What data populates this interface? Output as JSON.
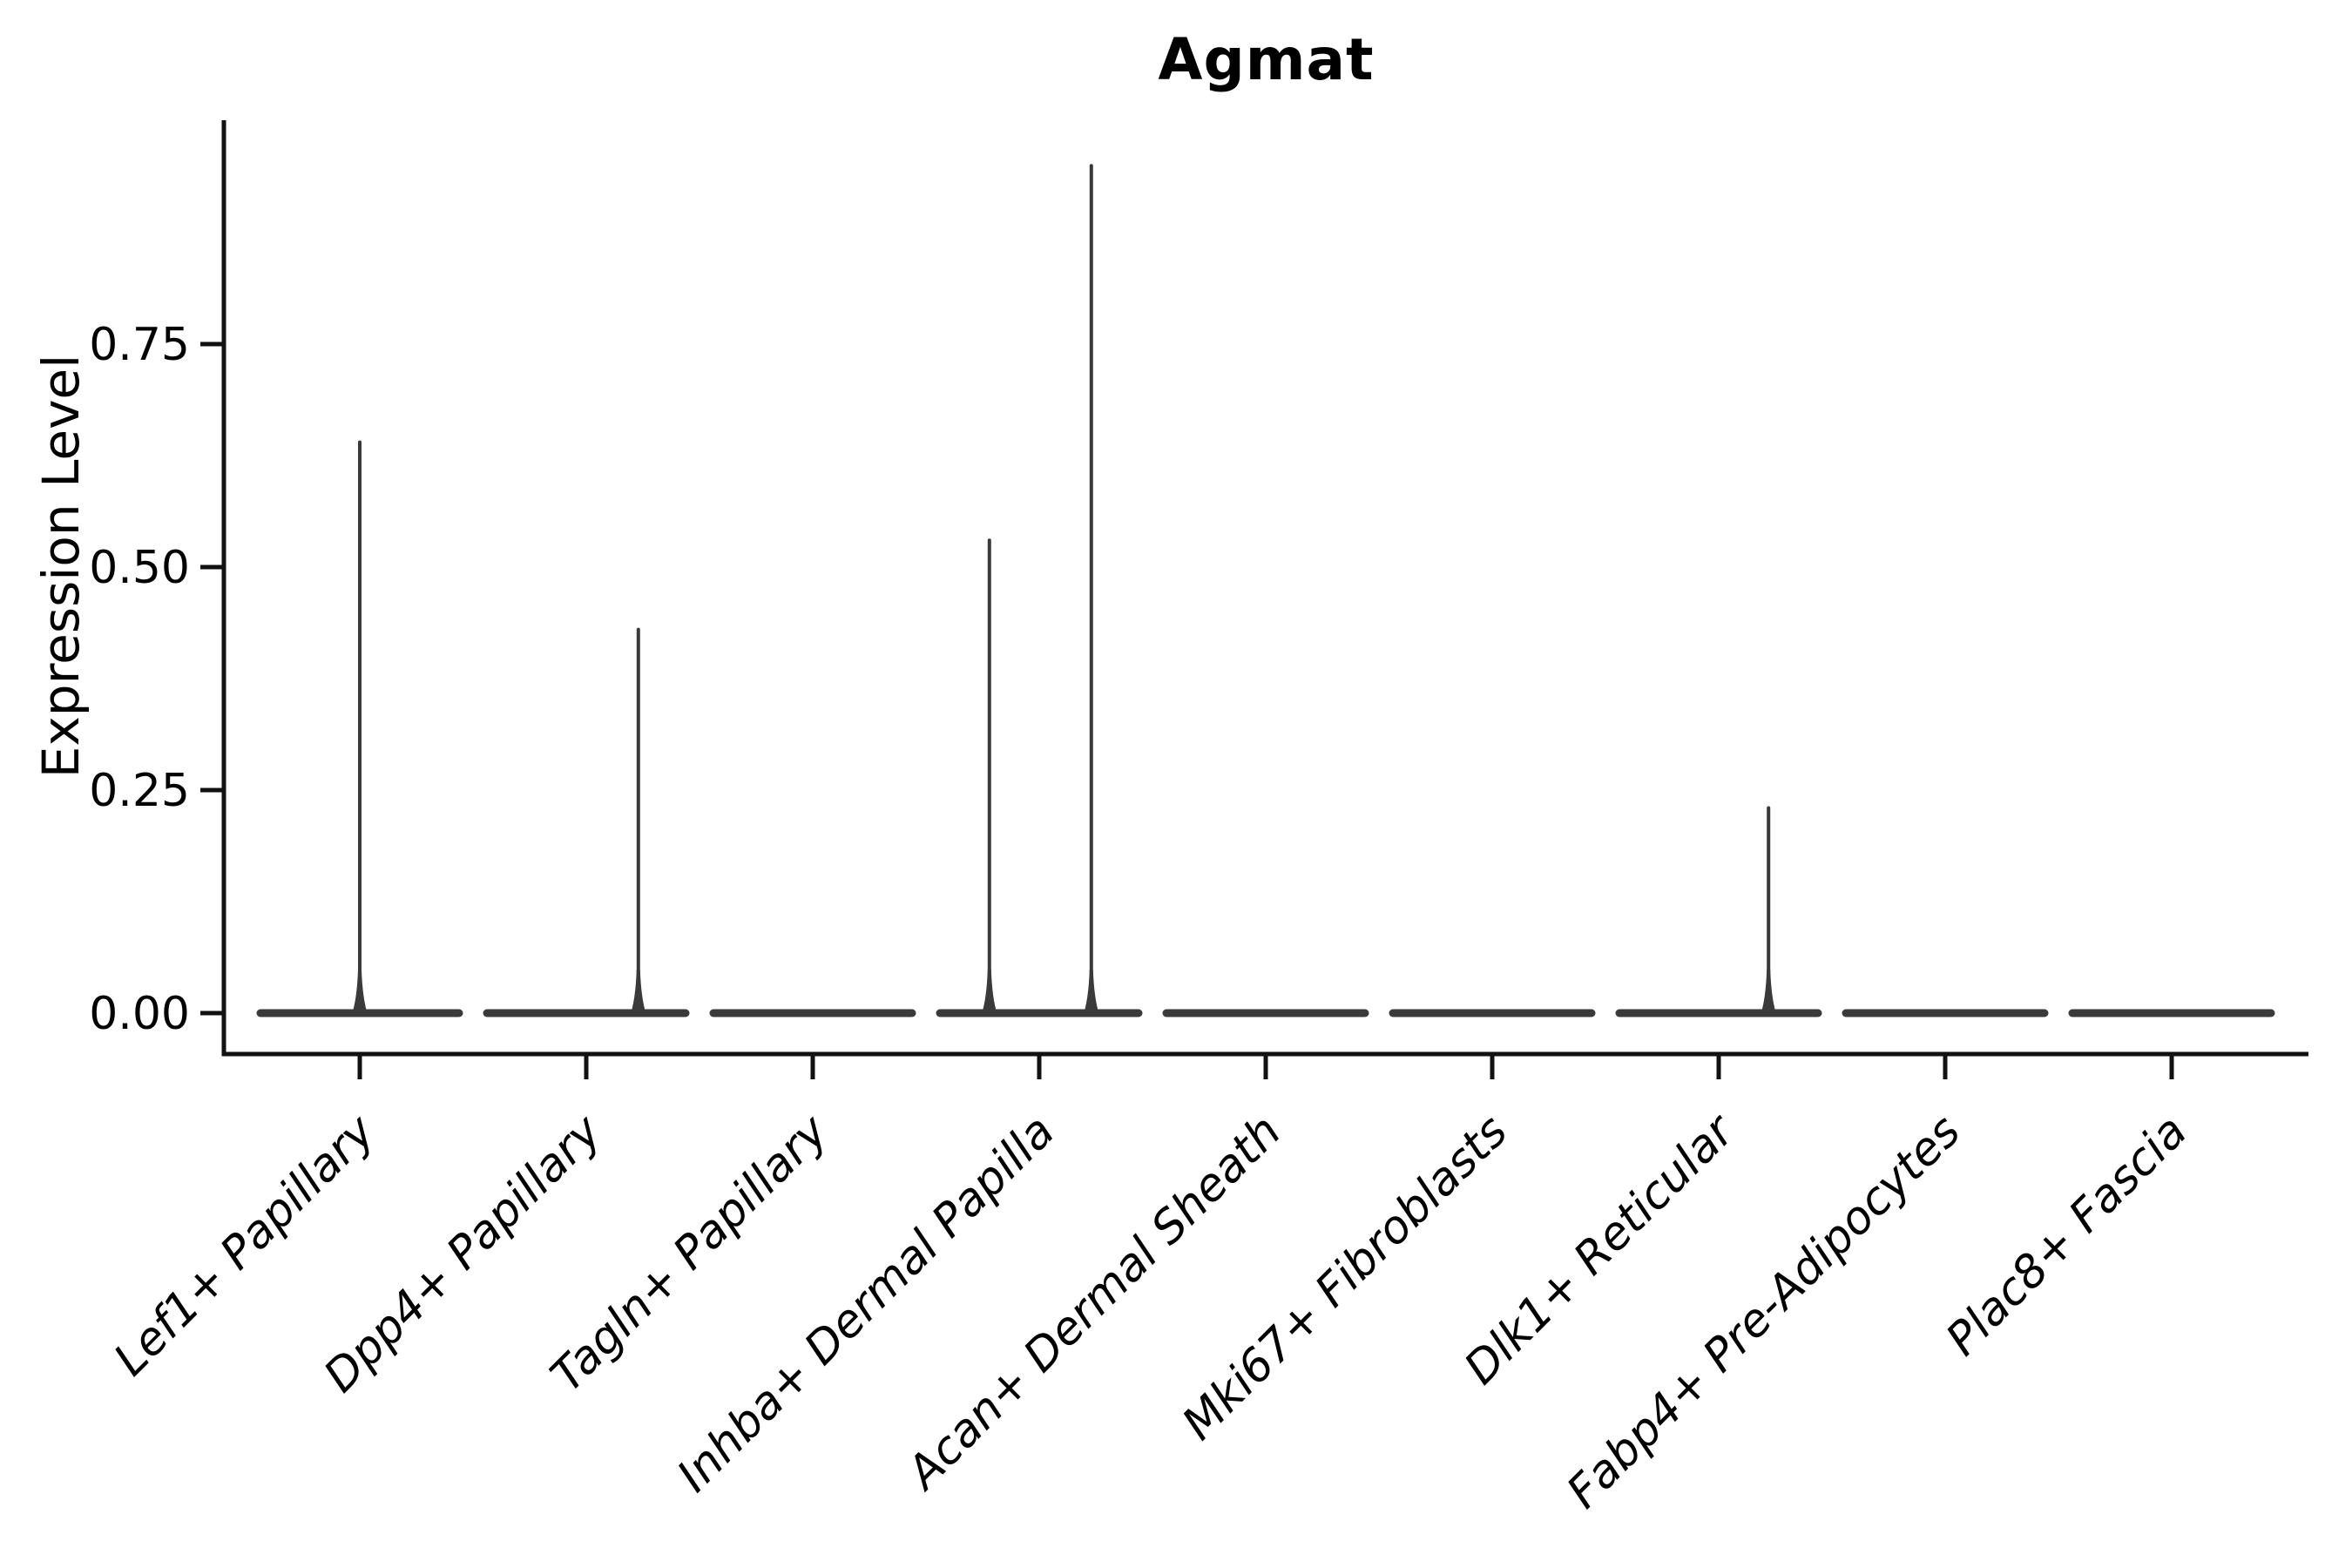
{
  "chart_data": {
    "type": "violin",
    "title": "Agmat",
    "ylabel": "Expression Level",
    "xlabel": "",
    "ylim": [
      0,
      1.0
    ],
    "y_ticks": [
      0,
      0.25,
      0.5,
      0.75
    ],
    "y_tick_labels": [
      "0.00",
      "0.25",
      "0.50",
      "0.75"
    ],
    "grid": false,
    "legend": "none",
    "x_tick_label_rotation_deg": 45,
    "categories": [
      "Lef1+ Papillary",
      "Dpp4+ Papillary",
      "Tagln+ Papillary",
      "Inhba+ Dermal Papilla",
      "Acan+ Dermal Sheath",
      "Mki67+ Fibroblasts",
      "Dlk1+ Reticular",
      "Fabp4+ Pre-Adipocytes",
      "Plac8+ Fascia"
    ],
    "violins": [
      {
        "category": "Lef1+ Papillary",
        "baseline_value": 0.0,
        "spikes": [
          {
            "dx_frac": 0.0,
            "value": 0.64
          }
        ]
      },
      {
        "category": "Dpp4+ Papillary",
        "baseline_value": 0.0,
        "spikes": [
          {
            "dx_frac": 0.23,
            "value": 0.43
          }
        ]
      },
      {
        "category": "Tagln+ Papillary",
        "baseline_value": 0.0,
        "spikes": []
      },
      {
        "category": "Inhba+ Dermal Papilla",
        "baseline_value": 0.0,
        "spikes": [
          {
            "dx_frac": -0.22,
            "value": 0.53
          },
          {
            "dx_frac": 0.23,
            "value": 0.95
          }
        ]
      },
      {
        "category": "Acan+ Dermal Sheath",
        "baseline_value": 0.0,
        "spikes": []
      },
      {
        "category": "Mki67+ Fibroblasts",
        "baseline_value": 0.0,
        "spikes": []
      },
      {
        "category": "Dlk1+ Reticular",
        "baseline_value": 0.0,
        "spikes": [
          {
            "dx_frac": 0.22,
            "value": 0.23
          }
        ]
      },
      {
        "category": "Fabp4+ Pre-Adipocytes",
        "baseline_value": 0.0,
        "spikes": []
      },
      {
        "category": "Plac8+ Fascia",
        "baseline_value": 0.0,
        "spikes": []
      }
    ],
    "colors": {
      "violin": "#3a3a3a",
      "axis": "#111111",
      "text": "#000000",
      "background": "#ffffff"
    }
  }
}
